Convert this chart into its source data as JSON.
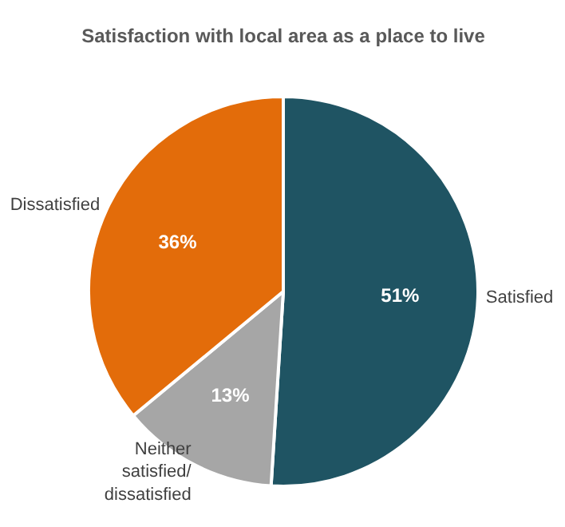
{
  "chart_data": {
    "type": "pie",
    "title": "Satisfaction with local area as a place to live",
    "categories": [
      "Satisfied",
      "Neither satisfied/ dissatisfied",
      "Dissatisfied"
    ],
    "values": [
      51,
      13,
      36
    ],
    "colors": [
      "#1f5463",
      "#a6a6a6",
      "#e36c0a"
    ],
    "value_labels": [
      "51%",
      "13%",
      "36%"
    ]
  }
}
